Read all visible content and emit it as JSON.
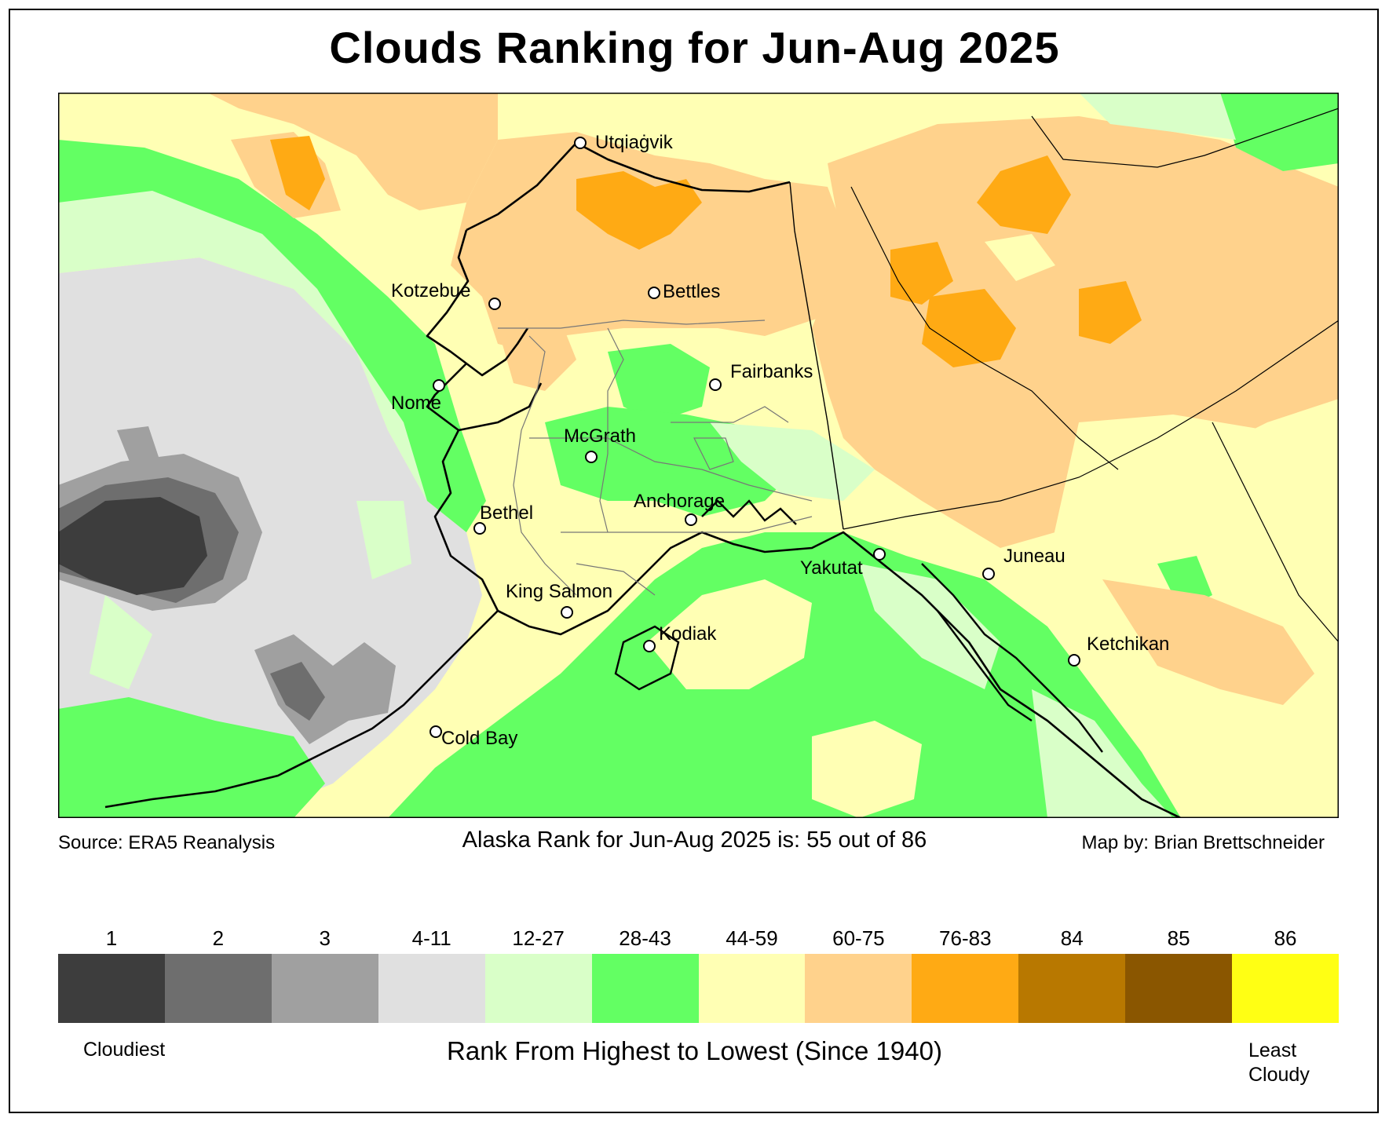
{
  "title": "Clouds Ranking for Jun-Aug 2025",
  "source": "Source: ERA5 Reanalysis",
  "state_rank": "Alaska Rank for Jun-Aug 2025 is: 55 out of 86",
  "map_by": "Map by: Brian Brettschneider",
  "legend": {
    "title": "Rank From Highest to Lowest (Since 1940)",
    "low_end": "Cloudiest",
    "high_end": "Least Cloudy",
    "bins": [
      {
        "label": "1",
        "color": "#3d3d3d"
      },
      {
        "label": "2",
        "color": "#6e6e6e"
      },
      {
        "label": "3",
        "color": "#a0a0a0"
      },
      {
        "label": "4-11",
        "color": "#e0e0e0"
      },
      {
        "label": "12-27",
        "color": "#d9ffc8"
      },
      {
        "label": "28-43",
        "color": "#63ff63"
      },
      {
        "label": "44-59",
        "color": "#ffffb4"
      },
      {
        "label": "60-75",
        "color": "#ffd28c"
      },
      {
        "label": "76-83",
        "color": "#ffaa14"
      },
      {
        "label": "84",
        "color": "#b87800"
      },
      {
        "label": "85",
        "color": "#8a5600"
      },
      {
        "label": "86",
        "color": "#ffff14"
      }
    ]
  },
  "cities": [
    "Utqiaġvik",
    "Bettles",
    "Kotzebue",
    "Fairbanks",
    "Nome",
    "McGrath",
    "Anchorage",
    "Bethel",
    "Yakutat",
    "Juneau",
    "King Salmon",
    "Kodiak",
    "Ketchikan",
    "Cold Bay"
  ]
}
